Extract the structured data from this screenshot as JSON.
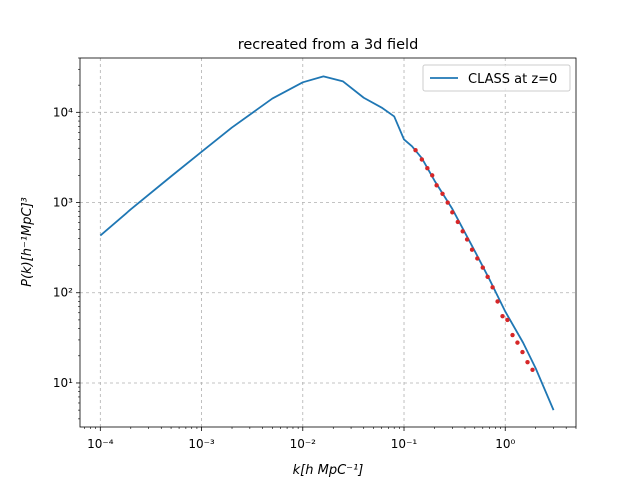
{
  "chart_data": {
    "type": "line",
    "title": "recreated from a 3d field",
    "xlabel": "k[h MpC⁻¹]",
    "ylabel": "P(k)[h⁻¹MpC]³",
    "xscale": "log",
    "yscale": "log",
    "xlim": [
      6.3e-05,
      5.0
    ],
    "ylim": [
      3.25,
      40000
    ],
    "grid": true,
    "legend_position": "upper right",
    "x_tick_labels": [
      "10⁻⁴",
      "10⁻³",
      "10⁻²",
      "10⁻¹",
      "10⁰"
    ],
    "y_tick_labels": [
      "10¹",
      "10²",
      "10³",
      "10⁴"
    ],
    "colors": {
      "line": "#1f77b4",
      "points": "#d62728",
      "grid": "#b0b0b0"
    },
    "series": [
      {
        "name": "CLASS at z=0",
        "kind": "line",
        "x": [
          0.0001,
          0.0002,
          0.0005,
          0.001,
          0.002,
          0.005,
          0.01,
          0.016,
          0.025,
          0.04,
          0.06,
          0.08,
          0.1,
          0.12,
          0.15,
          0.2,
          0.3,
          0.5,
          0.7,
          1.0,
          1.5,
          2.0,
          3.0
        ],
        "y": [
          430,
          840,
          1950,
          3650,
          6800,
          14200,
          21500,
          25000,
          22000,
          14500,
          11300,
          9000,
          5000,
          4200,
          3100,
          1750,
          850,
          290,
          140,
          62,
          28,
          14.5,
          5.0
        ]
      },
      {
        "name": "",
        "kind": "scatter",
        "x": [
          0.13,
          0.15,
          0.17,
          0.19,
          0.21,
          0.24,
          0.27,
          0.3,
          0.34,
          0.38,
          0.42,
          0.47,
          0.53,
          0.6,
          0.67,
          0.75,
          0.84,
          0.94,
          1.05,
          1.18,
          1.32,
          1.48,
          1.66,
          1.86
        ],
        "y": [
          3800,
          3000,
          2400,
          2000,
          1550,
          1250,
          1000,
          780,
          610,
          480,
          390,
          300,
          240,
          190,
          150,
          115,
          80,
          55,
          50,
          34,
          28,
          22,
          17,
          14
        ]
      }
    ]
  }
}
